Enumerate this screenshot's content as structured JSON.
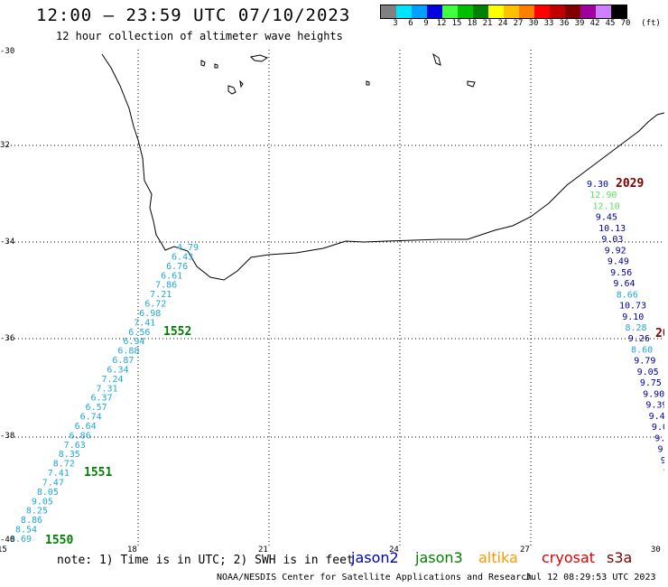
{
  "header": {
    "title": "12:00 – 23:59 UTC 07/10/2023",
    "subtitle": "12 hour collection of altimeter wave heights"
  },
  "colorbar": {
    "unit": "(ft)",
    "bins": [
      {
        "label": "3",
        "color": "#808080"
      },
      {
        "label": "6",
        "color": "#00e5ff"
      },
      {
        "label": "9",
        "color": "#00a0ff"
      },
      {
        "label": "12",
        "color": "#0000e0"
      },
      {
        "label": "15",
        "color": "#40ff40"
      },
      {
        "label": "18",
        "color": "#00c000"
      },
      {
        "label": "21",
        "color": "#008000"
      },
      {
        "label": "24",
        "color": "#ffff00"
      },
      {
        "label": "27",
        "color": "#ffc000"
      },
      {
        "label": "30",
        "color": "#ff8000"
      },
      {
        "label": "33",
        "color": "#ff0000"
      },
      {
        "label": "36",
        "color": "#c00000"
      },
      {
        "label": "39",
        "color": "#800000"
      },
      {
        "label": "42",
        "color": "#a000a0"
      },
      {
        "label": "45",
        "color": "#d080ff"
      },
      {
        "label": "70",
        "color": "#000000"
      }
    ]
  },
  "axes": {
    "lat_labels": [
      "-30",
      "32",
      "-34",
      "-36",
      "-38",
      "-40"
    ],
    "lon_labels": [
      "15",
      "18",
      "21",
      "24",
      "27",
      "30"
    ]
  },
  "map": {
    "track_west": {
      "color": "#20a8d8",
      "values": [
        "4.79",
        "6.43",
        "6.76",
        "6.61",
        "7.86",
        "7.21",
        "6.72",
        "6.98",
        "7.41",
        "6.56",
        "6.94",
        "6.88",
        "6.87",
        "6.34",
        "7.24",
        "7.31",
        "6.37",
        "6.57",
        "6.74",
        "6.64",
        "6.86",
        "7.63",
        "8.35",
        "8.72",
        "7.41",
        "7.47",
        "8.05",
        "9.05",
        "8.25",
        "8.86",
        "8.54",
        "8.69"
      ],
      "time_labels": [
        "1552",
        "1551",
        "1550"
      ],
      "time_color": "#008000"
    },
    "track_east": {
      "time_labels": [
        "2029",
        "20"
      ],
      "time_color": "#800000",
      "values": [
        {
          "v": "9.30",
          "c": "#0000a0"
        },
        {
          "v": "12.90",
          "c": "#60e060"
        },
        {
          "v": "12.10",
          "c": "#60e060"
        },
        {
          "v": "9.45",
          "c": "#0000a0"
        },
        {
          "v": "10.13",
          "c": "#0000a0"
        },
        {
          "v": "9.03",
          "c": "#0000a0"
        },
        {
          "v": "9.92",
          "c": "#0000a0"
        },
        {
          "v": "9.49",
          "c": "#0000a0"
        },
        {
          "v": "9.56",
          "c": "#0000a0"
        },
        {
          "v": "9.64",
          "c": "#0000a0"
        },
        {
          "v": "8.66",
          "c": "#20a8d8"
        },
        {
          "v": "10.73",
          "c": "#0000a0"
        },
        {
          "v": "9.10",
          "c": "#0000a0"
        },
        {
          "v": "8.28",
          "c": "#20a8d8"
        },
        {
          "v": "9.26",
          "c": "#0000a0"
        },
        {
          "v": "8.60",
          "c": "#20a8d8"
        },
        {
          "v": "9.79",
          "c": "#0000a0"
        },
        {
          "v": "9.05",
          "c": "#0000a0"
        },
        {
          "v": "9.75",
          "c": "#0000a0"
        },
        {
          "v": "9.90",
          "c": "#0000a0"
        },
        {
          "v": "9.39",
          "c": "#0000a0"
        },
        {
          "v": "9.45",
          "c": "#0000a0"
        },
        {
          "v": "9.0",
          "c": "#0000a0"
        },
        {
          "v": "9.9",
          "c": "#0000a0"
        },
        {
          "v": "9.",
          "c": "#0000a0"
        },
        {
          "v": "9.",
          "c": "#0000a0"
        },
        {
          "v": "9",
          "c": "#0000a0"
        }
      ]
    }
  },
  "footer": {
    "note": "note: 1) Time is in UTC; 2) SWH is in feet",
    "legend": [
      {
        "name": "jason2",
        "color": "#0000c0"
      },
      {
        "name": "jason3",
        "color": "#008000"
      },
      {
        "name": "altika",
        "color": "#ff9900"
      },
      {
        "name": "cryosat",
        "color": "#dd0000"
      },
      {
        "name": "s3a",
        "color": "#800000"
      }
    ],
    "credit": "NOAA/NESDIS Center for Satellite Applications and Research",
    "timestamp": "Jul 12 08:29:53 UTC 2023"
  }
}
